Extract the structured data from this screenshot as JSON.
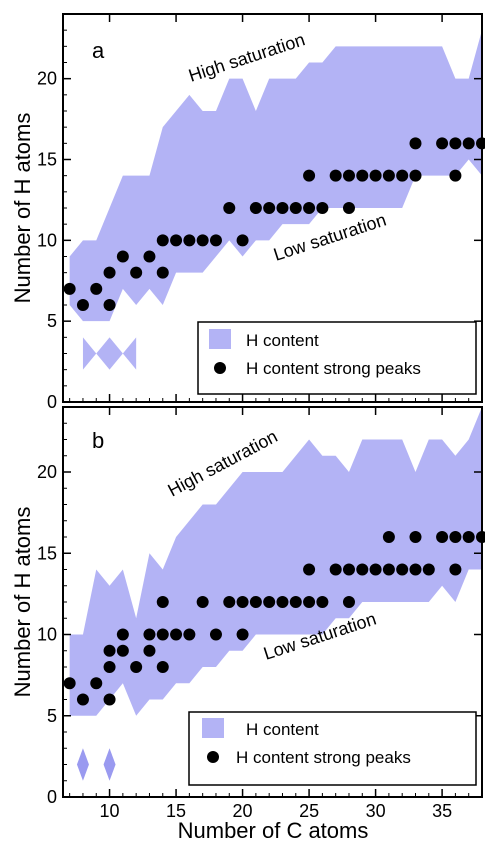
{
  "figure": {
    "xlabel": "Number of C atoms",
    "ylabel": "Number of H atoms"
  },
  "chart_data": [
    {
      "type": "area",
      "panel": "a",
      "xlim": [
        6.5,
        38
      ],
      "ylim": [
        0,
        24
      ],
      "xticks": [
        10,
        15,
        20,
        25,
        30,
        35
      ],
      "yticks": [
        0,
        5,
        10,
        15,
        20
      ],
      "grid": false,
      "legend_placement": "bottom-right",
      "annotations": {
        "high": "High saturation",
        "low": "Low saturation"
      },
      "series": [
        {
          "name": "H content",
          "kind": "band",
          "color": "#b3b3f5",
          "x": [
            7,
            8,
            9,
            10,
            11,
            12,
            13,
            14,
            15,
            16,
            17,
            18,
            19,
            20,
            21,
            22,
            23,
            24,
            25,
            26,
            27,
            28,
            29,
            30,
            31,
            32,
            33,
            34,
            35,
            36,
            37,
            38
          ],
          "upper": [
            9,
            10,
            10,
            12,
            14,
            14,
            14,
            17,
            18,
            19,
            18,
            18,
            20,
            20,
            18,
            20,
            20,
            20,
            21,
            21,
            22,
            22,
            22,
            22,
            22,
            22,
            22,
            22,
            22,
            20,
            20,
            23
          ],
          "lower": [
            6,
            5,
            5,
            5,
            7,
            6,
            7,
            6,
            8,
            8,
            8,
            9,
            10,
            9,
            10,
            10,
            11,
            11,
            11,
            12,
            12,
            12,
            12,
            12,
            12,
            12,
            14,
            14,
            14,
            14,
            15,
            14
          ]
        },
        {
          "name": "H content",
          "kind": "band-extra",
          "color": "#b3b3f5",
          "x": [
            8,
            9,
            10,
            11,
            12
          ],
          "upper": [
            4,
            3,
            4,
            3,
            4
          ],
          "lower": [
            2,
            3,
            2,
            3,
            2
          ]
        },
        {
          "name": "H content strong peaks",
          "kind": "points",
          "color": "#000000",
          "x": [
            7,
            8,
            9,
            10,
            10,
            11,
            12,
            13,
            14,
            14,
            15,
            16,
            17,
            18,
            19,
            20,
            21,
            22,
            23,
            24,
            25,
            25,
            26,
            27,
            28,
            28,
            29,
            30,
            31,
            32,
            33,
            33,
            35,
            36,
            36,
            37,
            38
          ],
          "y": [
            7,
            6,
            7,
            6,
            8,
            9,
            8,
            9,
            8,
            10,
            10,
            10,
            10,
            10,
            12,
            10,
            12,
            12,
            12,
            12,
            12,
            14,
            12,
            14,
            12,
            14,
            14,
            14,
            14,
            14,
            14,
            16,
            16,
            14,
            16,
            16,
            16
          ]
        }
      ]
    },
    {
      "type": "area",
      "panel": "b",
      "xlim": [
        6.5,
        38
      ],
      "ylim": [
        0,
        24
      ],
      "xticks": [
        10,
        15,
        20,
        25,
        30,
        35
      ],
      "yticks": [
        0,
        5,
        10,
        15,
        20
      ],
      "grid": false,
      "legend_placement": "bottom-right",
      "annotations": {
        "high": "High saturation",
        "low": "Low saturation"
      },
      "series": [
        {
          "name": "H content",
          "kind": "band",
          "color": "#b3b3f5",
          "x": [
            7,
            8,
            9,
            10,
            11,
            12,
            13,
            14,
            15,
            16,
            17,
            18,
            19,
            20,
            21,
            22,
            23,
            24,
            25,
            26,
            27,
            28,
            29,
            30,
            31,
            32,
            33,
            34,
            35,
            36,
            37,
            38
          ],
          "upper": [
            10,
            10,
            14,
            13,
            14,
            11,
            15,
            14,
            16,
            17,
            18,
            18,
            19,
            20,
            20,
            20,
            20,
            21,
            22,
            21,
            21,
            20,
            22,
            22,
            22,
            22,
            20,
            22,
            22,
            21,
            22,
            24
          ],
          "lower": [
            5,
            5,
            5,
            6,
            7,
            5,
            6,
            6,
            7,
            7,
            8,
            8,
            9,
            9,
            10,
            10,
            10,
            10,
            10,
            10,
            11,
            11,
            12,
            12,
            12,
            12,
            12,
            12,
            13,
            12,
            14,
            14
          ]
        },
        {
          "name": "H content",
          "kind": "diamonds",
          "color": "#9a9af0",
          "x": [
            8,
            10
          ],
          "y": [
            2,
            2
          ],
          "half_height": 1
        },
        {
          "name": "H content strong peaks",
          "kind": "points",
          "color": "#000000",
          "x": [
            7,
            8,
            9,
            10,
            10,
            10,
            11,
            11,
            12,
            13,
            13,
            14,
            14,
            14,
            15,
            16,
            17,
            18,
            19,
            20,
            20,
            21,
            22,
            23,
            24,
            25,
            25,
            26,
            27,
            28,
            28,
            29,
            30,
            31,
            31,
            32,
            33,
            33,
            34,
            35,
            36,
            36,
            37,
            38
          ],
          "y": [
            7,
            6,
            7,
            6,
            8,
            9,
            9,
            10,
            8,
            9,
            10,
            8,
            10,
            12,
            10,
            10,
            12,
            10,
            12,
            10,
            12,
            12,
            12,
            12,
            12,
            12,
            14,
            12,
            14,
            12,
            14,
            14,
            14,
            14,
            16,
            14,
            14,
            16,
            14,
            16,
            14,
            16,
            16,
            16
          ]
        }
      ]
    }
  ],
  "legend": {
    "band_label": "H content",
    "points_label": "H content strong peaks"
  }
}
